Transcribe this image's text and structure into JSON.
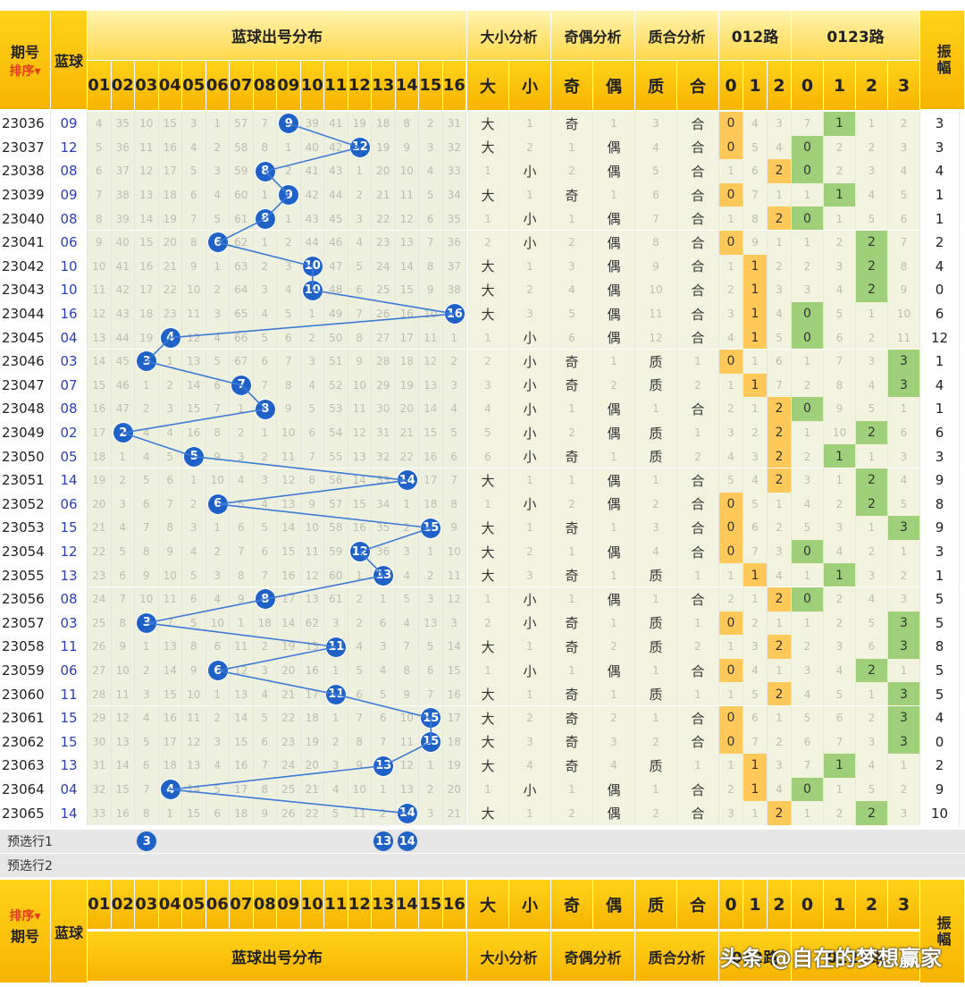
{
  "header": {
    "issue_label": "期号",
    "sort_label": "排序",
    "blue_label": "蓝球",
    "dist_label": "蓝球出号分布",
    "size_label": "大小分析",
    "parity_label": "奇偶分析",
    "prime_label": "质合分析",
    "r012_label": "012路",
    "r0123_label": "0123路",
    "amp_label": "振幅",
    "numbers": [
      "01",
      "02",
      "03",
      "04",
      "05",
      "06",
      "07",
      "08",
      "09",
      "10",
      "11",
      "12",
      "13",
      "14",
      "15",
      "16"
    ],
    "size_cols": [
      "大",
      "小"
    ],
    "parity_cols": [
      "奇",
      "偶"
    ],
    "prime_cols": [
      "质",
      "合"
    ],
    "r012_cols": [
      "0",
      "1",
      "2"
    ],
    "r0123_cols": [
      "0",
      "1",
      "2",
      "3"
    ]
  },
  "rows": [
    {
      "issue": "23036",
      "blue": "09",
      "dist": [
        "4",
        "35",
        "10",
        "15",
        "3",
        "1",
        "57",
        "7",
        "9",
        "39",
        "41",
        "19",
        "18",
        "8",
        "2",
        "31"
      ],
      "a": [
        "大",
        "1",
        "奇",
        "1",
        "3",
        "合"
      ],
      "r012": [
        "0",
        "4",
        "3"
      ],
      "r0123": [
        "7",
        "1",
        "1",
        "2"
      ],
      "amp": "3"
    },
    {
      "issue": "23037",
      "blue": "12",
      "dist": [
        "5",
        "36",
        "11",
        "16",
        "4",
        "2",
        "58",
        "8",
        "1",
        "40",
        "42",
        "12",
        "19",
        "9",
        "3",
        "32"
      ],
      "a": [
        "大",
        "2",
        "1",
        "偶",
        "4",
        "合"
      ],
      "r012": [
        "0",
        "5",
        "4"
      ],
      "r0123": [
        "0",
        "2",
        "2",
        "3"
      ],
      "amp": "3"
    },
    {
      "issue": "23038",
      "blue": "08",
      "dist": [
        "6",
        "37",
        "12",
        "17",
        "5",
        "3",
        "59",
        "8",
        "2",
        "41",
        "43",
        "1",
        "20",
        "10",
        "4",
        "33"
      ],
      "a": [
        "1",
        "小",
        "2",
        "偶",
        "5",
        "合"
      ],
      "r012": [
        "1",
        "6",
        "2"
      ],
      "r0123": [
        "0",
        "2",
        "3",
        "4"
      ],
      "amp": "4"
    },
    {
      "issue": "23039",
      "blue": "09",
      "dist": [
        "7",
        "38",
        "13",
        "18",
        "6",
        "4",
        "60",
        "1",
        "9",
        "42",
        "44",
        "2",
        "21",
        "11",
        "5",
        "34"
      ],
      "a": [
        "大",
        "1",
        "奇",
        "1",
        "6",
        "合"
      ],
      "r012": [
        "0",
        "7",
        "1"
      ],
      "r0123": [
        "1",
        "1",
        "4",
        "5"
      ],
      "amp": "1"
    },
    {
      "issue": "23040",
      "blue": "08",
      "dist": [
        "8",
        "39",
        "14",
        "19",
        "7",
        "5",
        "61",
        "8",
        "1",
        "43",
        "45",
        "3",
        "22",
        "12",
        "6",
        "35"
      ],
      "a": [
        "1",
        "小",
        "1",
        "偶",
        "7",
        "合"
      ],
      "r012": [
        "1",
        "8",
        "2"
      ],
      "r0123": [
        "0",
        "1",
        "5",
        "6"
      ],
      "amp": "1"
    },
    {
      "issue": "23041",
      "blue": "06",
      "dist": [
        "9",
        "40",
        "15",
        "20",
        "8",
        "6",
        "62",
        "1",
        "2",
        "44",
        "46",
        "4",
        "23",
        "13",
        "7",
        "36"
      ],
      "a": [
        "2",
        "小",
        "2",
        "偶",
        "8",
        "合"
      ],
      "r012": [
        "0",
        "9",
        "1"
      ],
      "r0123": [
        "1",
        "2",
        "2",
        "7"
      ],
      "amp": "2"
    },
    {
      "issue": "23042",
      "blue": "10",
      "dist": [
        "10",
        "41",
        "16",
        "21",
        "9",
        "1",
        "63",
        "2",
        "3",
        "10",
        "47",
        "5",
        "24",
        "14",
        "8",
        "37"
      ],
      "a": [
        "大",
        "1",
        "3",
        "偶",
        "9",
        "合"
      ],
      "r012": [
        "1",
        "1",
        "2"
      ],
      "r0123": [
        "2",
        "3",
        "2",
        "8"
      ],
      "amp": "4"
    },
    {
      "issue": "23043",
      "blue": "10",
      "dist": [
        "11",
        "42",
        "17",
        "22",
        "10",
        "2",
        "64",
        "3",
        "4",
        "10",
        "48",
        "6",
        "25",
        "15",
        "9",
        "38"
      ],
      "a": [
        "大",
        "2",
        "4",
        "偶",
        "10",
        "合"
      ],
      "r012": [
        "2",
        "1",
        "3"
      ],
      "r0123": [
        "3",
        "4",
        "2",
        "9"
      ],
      "amp": "0"
    },
    {
      "issue": "23044",
      "blue": "16",
      "dist": [
        "12",
        "43",
        "18",
        "23",
        "11",
        "3",
        "65",
        "4",
        "5",
        "1",
        "49",
        "7",
        "26",
        "16",
        "10",
        "16"
      ],
      "a": [
        "大",
        "3",
        "5",
        "偶",
        "11",
        "合"
      ],
      "r012": [
        "3",
        "1",
        "4"
      ],
      "r0123": [
        "0",
        "5",
        "1",
        "10"
      ],
      "amp": "6"
    },
    {
      "issue": "23045",
      "blue": "04",
      "dist": [
        "13",
        "44",
        "19",
        "4",
        "12",
        "4",
        "66",
        "5",
        "6",
        "2",
        "50",
        "8",
        "27",
        "17",
        "11",
        "1"
      ],
      "a": [
        "1",
        "小",
        "6",
        "偶",
        "12",
        "合"
      ],
      "r012": [
        "4",
        "1",
        "5"
      ],
      "r0123": [
        "0",
        "6",
        "2",
        "11"
      ],
      "amp": "12"
    },
    {
      "issue": "23046",
      "blue": "03",
      "dist": [
        "14",
        "45",
        "3",
        "1",
        "13",
        "5",
        "67",
        "6",
        "7",
        "3",
        "51",
        "9",
        "28",
        "18",
        "12",
        "2"
      ],
      "a": [
        "2",
        "小",
        "奇",
        "1",
        "质",
        "1"
      ],
      "r012": [
        "0",
        "1",
        "6"
      ],
      "r0123": [
        "1",
        "7",
        "3",
        "3"
      ],
      "amp": "1"
    },
    {
      "issue": "23047",
      "blue": "07",
      "dist": [
        "15",
        "46",
        "1",
        "2",
        "14",
        "6",
        "7",
        "7",
        "8",
        "4",
        "52",
        "10",
        "29",
        "19",
        "13",
        "3"
      ],
      "a": [
        "3",
        "小",
        "奇",
        "2",
        "质",
        "2"
      ],
      "r012": [
        "1",
        "1",
        "7"
      ],
      "r0123": [
        "2",
        "8",
        "4",
        "3"
      ],
      "amp": "4"
    },
    {
      "issue": "23048",
      "blue": "08",
      "dist": [
        "16",
        "47",
        "2",
        "3",
        "15",
        "7",
        "1",
        "8",
        "9",
        "5",
        "53",
        "11",
        "30",
        "20",
        "14",
        "4"
      ],
      "a": [
        "4",
        "小",
        "1",
        "偶",
        "1",
        "合"
      ],
      "r012": [
        "2",
        "1",
        "2"
      ],
      "r0123": [
        "0",
        "9",
        "5",
        "1"
      ],
      "amp": "1"
    },
    {
      "issue": "23049",
      "blue": "02",
      "dist": [
        "17",
        "2",
        "4",
        "4",
        "16",
        "8",
        "2",
        "1",
        "10",
        "6",
        "54",
        "12",
        "31",
        "21",
        "15",
        "5"
      ],
      "a": [
        "5",
        "小",
        "2",
        "偶",
        "质",
        "1"
      ],
      "r012": [
        "3",
        "2",
        "2"
      ],
      "r0123": [
        "1",
        "10",
        "2",
        "6"
      ],
      "amp": "6"
    },
    {
      "issue": "23050",
      "blue": "05",
      "dist": [
        "18",
        "1",
        "4",
        "5",
        "5",
        "9",
        "3",
        "2",
        "11",
        "7",
        "55",
        "13",
        "32",
        "22",
        "16",
        "6"
      ],
      "a": [
        "6",
        "小",
        "奇",
        "1",
        "质",
        "2"
      ],
      "r012": [
        "4",
        "3",
        "2"
      ],
      "r0123": [
        "2",
        "1",
        "1",
        "3"
      ],
      "amp": "3"
    },
    {
      "issue": "23051",
      "blue": "14",
      "dist": [
        "19",
        "2",
        "5",
        "6",
        "1",
        "10",
        "4",
        "3",
        "12",
        "8",
        "56",
        "14",
        "33",
        "14",
        "17",
        "7"
      ],
      "a": [
        "大",
        "1",
        "1",
        "偶",
        "1",
        "合"
      ],
      "r012": [
        "5",
        "4",
        "2"
      ],
      "r0123": [
        "3",
        "1",
        "2",
        "4"
      ],
      "amp": "9"
    },
    {
      "issue": "23052",
      "blue": "06",
      "dist": [
        "20",
        "3",
        "6",
        "7",
        "2",
        "6",
        "5",
        "4",
        "13",
        "9",
        "57",
        "15",
        "34",
        "1",
        "18",
        "8"
      ],
      "a": [
        "1",
        "小",
        "2",
        "偶",
        "2",
        "合"
      ],
      "r012": [
        "0",
        "5",
        "1"
      ],
      "r0123": [
        "4",
        "2",
        "2",
        "5"
      ],
      "amp": "8"
    },
    {
      "issue": "23053",
      "blue": "15",
      "dist": [
        "21",
        "4",
        "7",
        "8",
        "3",
        "1",
        "6",
        "5",
        "14",
        "10",
        "58",
        "16",
        "35",
        "2",
        "15",
        "9"
      ],
      "a": [
        "大",
        "1",
        "奇",
        "1",
        "3",
        "合"
      ],
      "r012": [
        "0",
        "6",
        "2"
      ],
      "r0123": [
        "5",
        "3",
        "1",
        "3"
      ],
      "amp": "9"
    },
    {
      "issue": "23054",
      "blue": "12",
      "dist": [
        "22",
        "5",
        "8",
        "9",
        "4",
        "2",
        "7",
        "6",
        "15",
        "11",
        "59",
        "12",
        "36",
        "3",
        "1",
        "10"
      ],
      "a": [
        "大",
        "2",
        "1",
        "偶",
        "4",
        "合"
      ],
      "r012": [
        "0",
        "7",
        "3"
      ],
      "r0123": [
        "0",
        "4",
        "2",
        "1"
      ],
      "amp": "3"
    },
    {
      "issue": "23055",
      "blue": "13",
      "dist": [
        "23",
        "6",
        "9",
        "10",
        "5",
        "3",
        "8",
        "7",
        "16",
        "12",
        "60",
        "1",
        "13",
        "4",
        "2",
        "11"
      ],
      "a": [
        "大",
        "3",
        "奇",
        "1",
        "质",
        "1"
      ],
      "r012": [
        "1",
        "1",
        "4"
      ],
      "r0123": [
        "1",
        "1",
        "3",
        "2"
      ],
      "amp": "1"
    },
    {
      "issue": "23056",
      "blue": "08",
      "dist": [
        "24",
        "7",
        "10",
        "11",
        "6",
        "4",
        "9",
        "8",
        "17",
        "13",
        "61",
        "2",
        "1",
        "5",
        "3",
        "12"
      ],
      "a": [
        "1",
        "小",
        "1",
        "偶",
        "1",
        "合"
      ],
      "r012": [
        "2",
        "1",
        "2"
      ],
      "r0123": [
        "0",
        "2",
        "4",
        "3"
      ],
      "amp": "5"
    },
    {
      "issue": "23057",
      "blue": "03",
      "dist": [
        "25",
        "8",
        "3",
        "7",
        "5",
        "10",
        "1",
        "18",
        "14",
        "62",
        "3",
        "2",
        "6",
        "4",
        "13",
        "3"
      ],
      "a": [
        "2",
        "小",
        "奇",
        "1",
        "质",
        "1"
      ],
      "r012": [
        "0",
        "2",
        "1"
      ],
      "r0123": [
        "1",
        "2",
        "5",
        "3"
      ],
      "amp": "5"
    },
    {
      "issue": "23058",
      "blue": "11",
      "dist": [
        "26",
        "9",
        "1",
        "13",
        "8",
        "6",
        "11",
        "2",
        "19",
        "15",
        "11",
        "4",
        "3",
        "7",
        "5",
        "14"
      ],
      "a": [
        "大",
        "1",
        "奇",
        "2",
        "质",
        "2"
      ],
      "r012": [
        "1",
        "3",
        "2"
      ],
      "r0123": [
        "2",
        "3",
        "6",
        "3"
      ],
      "amp": "8"
    },
    {
      "issue": "23059",
      "blue": "06",
      "dist": [
        "27",
        "10",
        "2",
        "14",
        "9",
        "6",
        "12",
        "3",
        "20",
        "16",
        "1",
        "5",
        "4",
        "8",
        "6",
        "15"
      ],
      "a": [
        "1",
        "小",
        "1",
        "偶",
        "1",
        "合"
      ],
      "r012": [
        "0",
        "4",
        "1"
      ],
      "r0123": [
        "3",
        "4",
        "2",
        "1"
      ],
      "amp": "5"
    },
    {
      "issue": "23060",
      "blue": "11",
      "dist": [
        "28",
        "11",
        "3",
        "15",
        "10",
        "1",
        "13",
        "4",
        "21",
        "17",
        "11",
        "6",
        "5",
        "9",
        "7",
        "16"
      ],
      "a": [
        "大",
        "1",
        "奇",
        "1",
        "质",
        "1"
      ],
      "r012": [
        "1",
        "5",
        "2"
      ],
      "r0123": [
        "4",
        "5",
        "1",
        "3"
      ],
      "amp": "5"
    },
    {
      "issue": "23061",
      "blue": "15",
      "dist": [
        "29",
        "12",
        "4",
        "16",
        "11",
        "2",
        "14",
        "5",
        "22",
        "18",
        "1",
        "7",
        "6",
        "10",
        "15",
        "17"
      ],
      "a": [
        "大",
        "2",
        "奇",
        "2",
        "1",
        "合"
      ],
      "r012": [
        "0",
        "6",
        "1"
      ],
      "r0123": [
        "5",
        "6",
        "2",
        "3"
      ],
      "amp": "4"
    },
    {
      "issue": "23062",
      "blue": "15",
      "dist": [
        "30",
        "13",
        "5",
        "17",
        "12",
        "3",
        "15",
        "6",
        "23",
        "19",
        "2",
        "8",
        "7",
        "11",
        "15",
        "18"
      ],
      "a": [
        "大",
        "3",
        "奇",
        "3",
        "2",
        "合"
      ],
      "r012": [
        "0",
        "7",
        "2"
      ],
      "r0123": [
        "6",
        "7",
        "3",
        "3"
      ],
      "amp": "0"
    },
    {
      "issue": "23063",
      "blue": "13",
      "dist": [
        "31",
        "14",
        "6",
        "18",
        "13",
        "4",
        "16",
        "7",
        "24",
        "20",
        "3",
        "9",
        "13",
        "12",
        "1",
        "19"
      ],
      "a": [
        "大",
        "4",
        "奇",
        "4",
        "质",
        "1"
      ],
      "r012": [
        "1",
        "1",
        "3"
      ],
      "r0123": [
        "7",
        "1",
        "4",
        "1"
      ],
      "amp": "2"
    },
    {
      "issue": "23064",
      "blue": "04",
      "dist": [
        "32",
        "15",
        "7",
        "4",
        "14",
        "5",
        "17",
        "8",
        "25",
        "21",
        "4",
        "10",
        "1",
        "13",
        "2",
        "20"
      ],
      "a": [
        "1",
        "小",
        "1",
        "偶",
        "1",
        "合"
      ],
      "r012": [
        "2",
        "1",
        "4"
      ],
      "r0123": [
        "0",
        "1",
        "5",
        "2"
      ],
      "amp": "9"
    },
    {
      "issue": "23065",
      "blue": "14",
      "dist": [
        "33",
        "16",
        "8",
        "1",
        "15",
        "6",
        "18",
        "9",
        "26",
        "22",
        "5",
        "11",
        "2",
        "14",
        "3",
        "21"
      ],
      "a": [
        "大",
        "1",
        "2",
        "偶",
        "2",
        "合"
      ],
      "r012": [
        "3",
        "1",
        "2"
      ],
      "r0123": [
        "1",
        "2",
        "2",
        "3"
      ],
      "amp": "10"
    }
  ],
  "presets": [
    {
      "label": "预选行1",
      "balls": [
        "3",
        "13",
        "14"
      ]
    },
    {
      "label": "预选行2",
      "balls": []
    }
  ],
  "watermark": "头条 @自在的梦想赢家"
}
